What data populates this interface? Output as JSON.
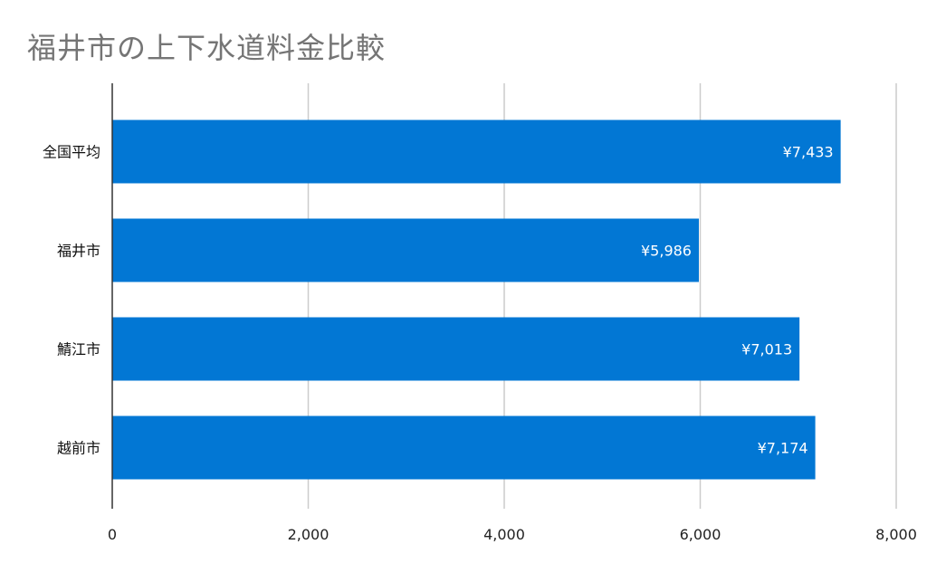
{
  "chart_data": {
    "type": "bar",
    "orientation": "horizontal",
    "title": "福井市の上下水道料金比較",
    "categories": [
      "全国平均",
      "福井市",
      "鯖江市",
      "越前市"
    ],
    "values": [
      7433,
      5986,
      7013,
      7174
    ],
    "data_labels": [
      "¥7,433",
      "¥5,986",
      "¥7,013",
      "¥7,174"
    ],
    "xlim": [
      0,
      8000
    ],
    "x_ticks": [
      0,
      2000,
      4000,
      6000,
      8000
    ],
    "x_tick_labels": [
      "0",
      "2,000",
      "4,000",
      "6,000",
      "8,000"
    ],
    "grid": true,
    "legend": "none",
    "colors": {
      "bar": "#0277d4",
      "grid": "#cccccc",
      "axis": "#333333",
      "title": "#757575",
      "data_label": "#ffffff"
    }
  }
}
